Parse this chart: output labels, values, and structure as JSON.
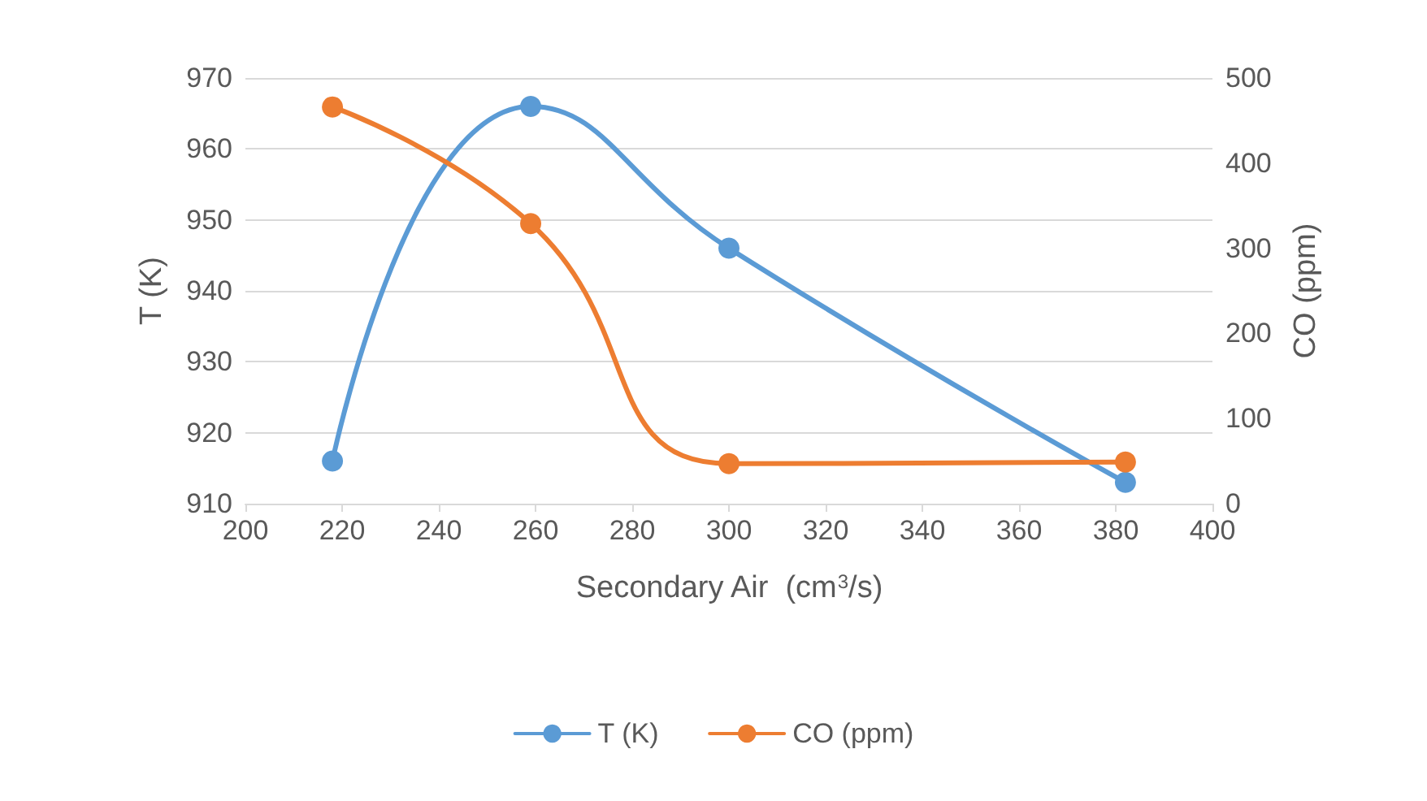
{
  "chart_data": {
    "type": "line",
    "xlabel": "Secondary Air  (cm$^{3}$/s)",
    "ylabel": "T (K)",
    "y2label": "CO (ppm)",
    "x": [
      218,
      259,
      300,
      382
    ],
    "series": [
      {
        "name": "T (K)",
        "color": "#5b9bd5",
        "values": [
          916,
          966,
          946,
          913
        ]
      },
      {
        "name": "CO (ppm)",
        "color": "#ed7d31",
        "values": [
          466,
          329,
          47,
          49
        ],
        "axis": "y2"
      }
    ],
    "xlim": [
      200,
      400
    ],
    "xticks": [
      200,
      220,
      240,
      260,
      280,
      300,
      320,
      340,
      360,
      380,
      400
    ],
    "ylim": [
      910,
      970
    ],
    "yticks": [
      910,
      920,
      930,
      940,
      950,
      960,
      970
    ],
    "y2lim": [
      0,
      500
    ],
    "y2ticks": [
      0,
      100,
      200,
      300,
      400,
      500
    ],
    "grid": "y",
    "legend": "bottom",
    "marker": "circle",
    "line_style": "solid"
  }
}
